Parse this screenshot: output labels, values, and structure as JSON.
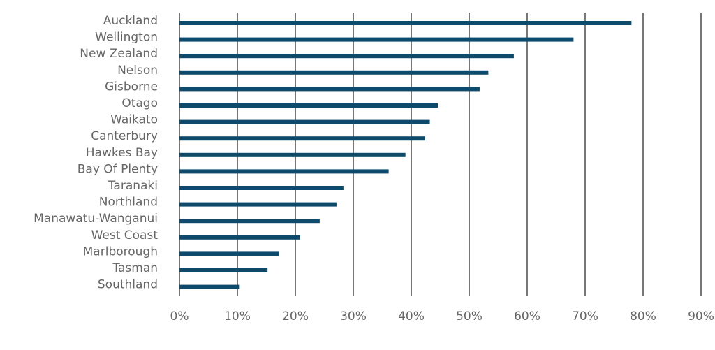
{
  "chart_data": {
    "type": "bar",
    "orientation": "horizontal",
    "categories": [
      "Auckland",
      "Wellington",
      "New Zealand",
      "Nelson",
      "Gisborne",
      "Otago",
      "Waikato",
      "Canterbury",
      "Hawkes Bay",
      "Bay Of Plenty",
      "Taranaki",
      "Northland",
      "Manawatu-Wanganui",
      "West Coast",
      "Marlborough",
      "Tasman",
      "Southland"
    ],
    "values": [
      0.78,
      0.68,
      0.577,
      0.533,
      0.518,
      0.446,
      0.432,
      0.424,
      0.39,
      0.361,
      0.283,
      0.271,
      0.242,
      0.208,
      0.172,
      0.152,
      0.104
    ],
    "xlim": [
      0,
      0.9
    ],
    "x_ticks": [
      0,
      0.1,
      0.2,
      0.3,
      0.4,
      0.5,
      0.6,
      0.7,
      0.8,
      0.9
    ],
    "x_tick_labels": [
      "0%",
      "10%",
      "20%",
      "30%",
      "40%",
      "50%",
      "60%",
      "70%",
      "80%",
      "90%"
    ],
    "title": "",
    "xlabel": "",
    "ylabel": "",
    "grid": true,
    "legend": "none",
    "colors": {
      "bar": "#0d4a6b",
      "grid": "#777777",
      "text": "#666666"
    }
  }
}
